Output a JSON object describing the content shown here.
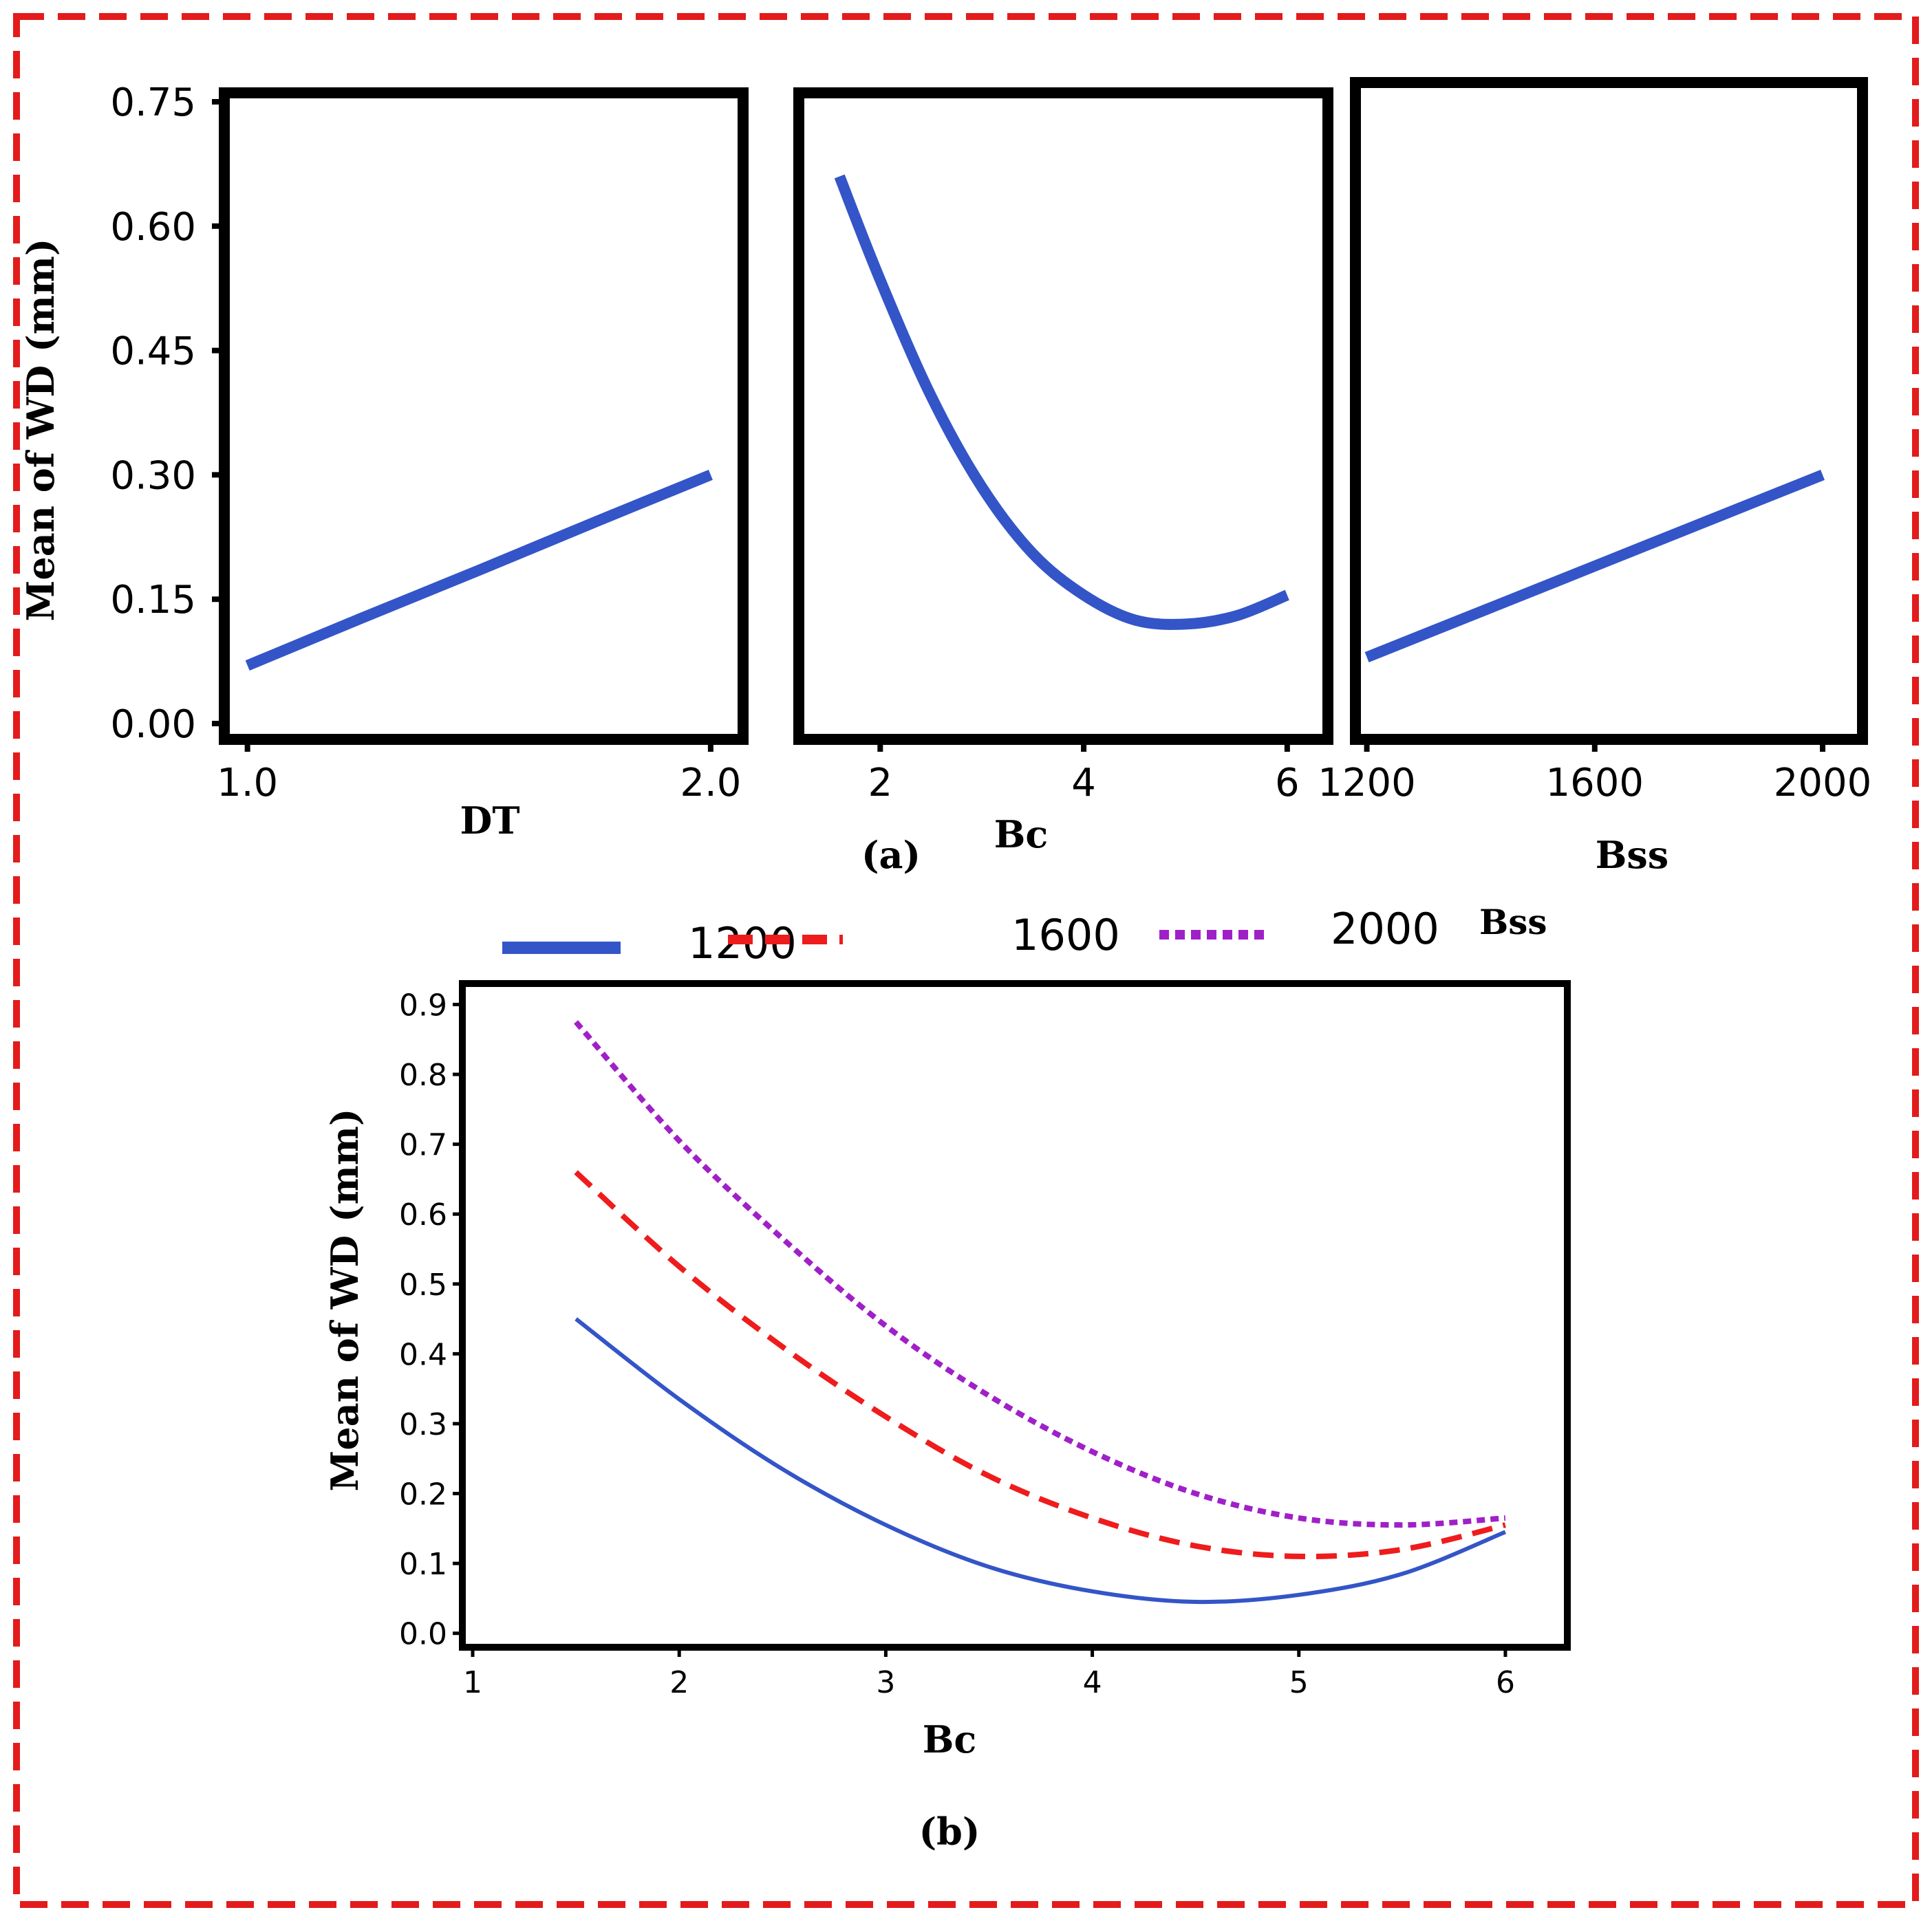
{
  "colors": {
    "frame": "#e31b1b",
    "axis": "#000000",
    "line_main": "#3355c8",
    "series_1200": "#3355c8",
    "series_1600": "#ee1c1c",
    "series_2000": "#a020c8"
  },
  "panel_a": {
    "label": "(a)",
    "ylabel": "Mean of WD (mm)",
    "ylim": [
      0.0,
      0.75
    ],
    "yticks": [
      "0.75",
      "0.60",
      "0.45",
      "0.30",
      "0.15",
      "0.00"
    ]
  },
  "panel_b": {
    "label": "(b)"
  },
  "chart_data": [
    {
      "type": "line",
      "title": "",
      "xlabel": "DT",
      "ylabel": "Mean of WD (mm)",
      "xlim": [
        0.95,
        2.07
      ],
      "ylim": [
        0.0,
        0.75
      ],
      "xticks": [
        "1.0",
        "2.0"
      ],
      "x": [
        1.0,
        1.25,
        1.5,
        1.75,
        2.0
      ],
      "y": [
        0.07,
        0.128,
        0.185,
        0.243,
        0.3
      ]
    },
    {
      "type": "line",
      "title": "",
      "xlabel": "Bc",
      "ylabel": "Mean of WD (mm)",
      "xlim": [
        1.2,
        6.4
      ],
      "ylim": [
        0.0,
        0.75
      ],
      "xticks": [
        "2",
        "4",
        "6"
      ],
      "x": [
        1.6,
        2.0,
        2.5,
        3.0,
        3.5,
        4.0,
        4.5,
        5.0,
        5.5,
        6.0
      ],
      "y": [
        0.66,
        0.535,
        0.395,
        0.285,
        0.205,
        0.155,
        0.125,
        0.12,
        0.13,
        0.155
      ]
    },
    {
      "type": "line",
      "title": "",
      "xlabel": "Bss",
      "ylabel": "Mean of WD (mm)",
      "xlim": [
        1180,
        2070
      ],
      "ylim": [
        0.0,
        0.75
      ],
      "xticks": [
        "1200",
        "1600",
        "2000"
      ],
      "x": [
        1200,
        1400,
        1600,
        1800,
        2000
      ],
      "y": [
        0.08,
        0.135,
        0.19,
        0.245,
        0.3
      ]
    },
    {
      "type": "line",
      "title": "",
      "xlabel": "Bc",
      "ylabel": "Mean of WD (mm)",
      "xlim": [
        0.95,
        6.3
      ],
      "ylim": [
        -0.02,
        0.93
      ],
      "yticks": [
        "0.9",
        "0.8",
        "0.7",
        "0.6",
        "0.5",
        "0.4",
        "0.3",
        "0.2",
        "0.1",
        "0.0"
      ],
      "xticks": [
        "1",
        "2",
        "3",
        "4",
        "5",
        "6"
      ],
      "legend_title": "Bss",
      "legend_position": "top",
      "x": [
        1.5,
        2.0,
        2.5,
        3.0,
        3.5,
        4.0,
        4.5,
        5.0,
        5.5,
        6.0
      ],
      "series": [
        {
          "name": "1200",
          "style": "solid",
          "values": [
            0.45,
            0.335,
            0.235,
            0.155,
            0.095,
            0.06,
            0.045,
            0.055,
            0.085,
            0.145
          ]
        },
        {
          "name": "1600",
          "style": "dashed",
          "values": [
            0.66,
            0.525,
            0.41,
            0.31,
            0.225,
            0.165,
            0.125,
            0.11,
            0.12,
            0.155
          ]
        },
        {
          "name": "2000",
          "style": "dotted",
          "values": [
            0.875,
            0.705,
            0.565,
            0.44,
            0.34,
            0.26,
            0.2,
            0.165,
            0.155,
            0.165
          ]
        }
      ]
    }
  ]
}
